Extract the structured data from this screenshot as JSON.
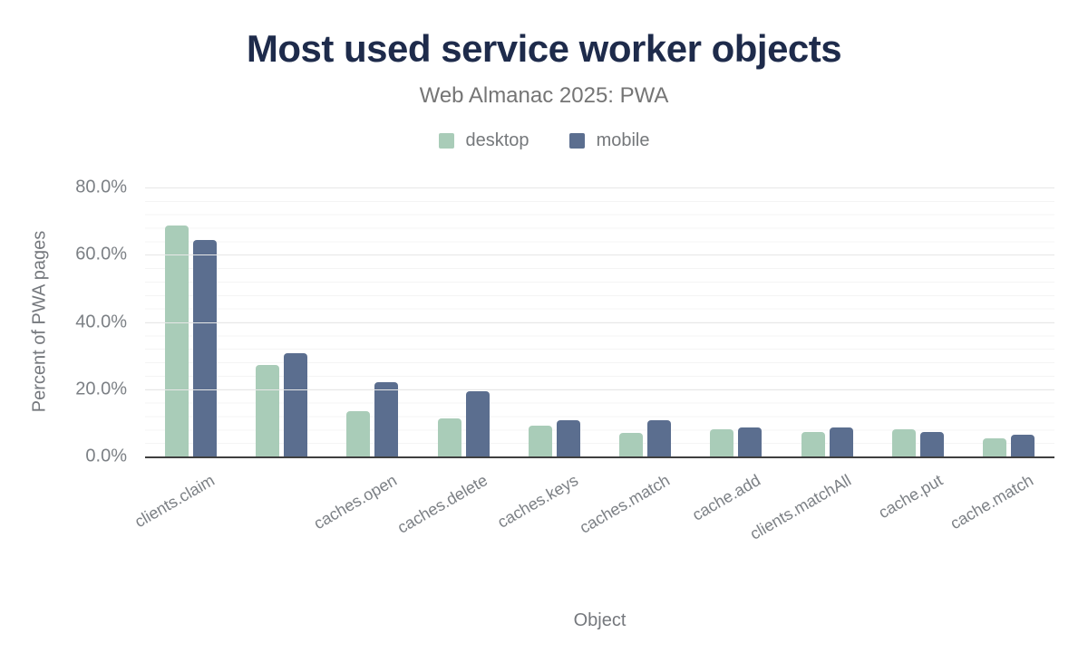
{
  "title": "Most used service worker objects",
  "subtitle": "Web Almanac 2025: PWA",
  "legend": {
    "position": "top center",
    "items": [
      {
        "label": "desktop",
        "color": "#a9ccb8"
      },
      {
        "label": "mobile",
        "color": "#5b6e8f"
      }
    ]
  },
  "colors": {
    "title_text": "#1e2b4b",
    "muted_text": "#757575",
    "axis_text": "#7c8085",
    "axis_line": "#3f3f3f",
    "gridline_major": "#e7e7e7",
    "gridline_minor": "#f4f4f4",
    "desktop_bar": "#a9ccb8",
    "mobile_bar": "#5b6e8f"
  },
  "chart_data": {
    "type": "bar",
    "title": "Most used service worker objects",
    "subtitle": "Web Almanac 2025: PWA",
    "xlabel": "Object",
    "ylabel": "Percent of PWA pages",
    "ylim": [
      0,
      80
    ],
    "yticks": [
      "0.0%",
      "20.0%",
      "40.0%",
      "60.0%",
      "80.0%"
    ],
    "grid": "horizontal major gridlines every 20%, faint minor gridlines every 4%",
    "legend_position": "top center",
    "x_label_rotation_deg": -30,
    "categories": [
      "clients.claim",
      "",
      "caches.open",
      "caches.delete",
      "caches.keys",
      "caches.match",
      "cache.add",
      "clients.matchAll",
      "cache.put",
      "cache.match"
    ],
    "series": [
      {
        "name": "desktop",
        "color": "#a9ccb8",
        "values": [
          68.8,
          27.3,
          13.4,
          11.2,
          9.2,
          6.9,
          8.2,
          7.4,
          8.2,
          5.5
        ]
      },
      {
        "name": "mobile",
        "color": "#5b6e8f",
        "values": [
          64.5,
          30.6,
          22.0,
          19.4,
          10.7,
          10.9,
          8.7,
          8.6,
          7.4,
          6.5
        ]
      }
    ]
  }
}
